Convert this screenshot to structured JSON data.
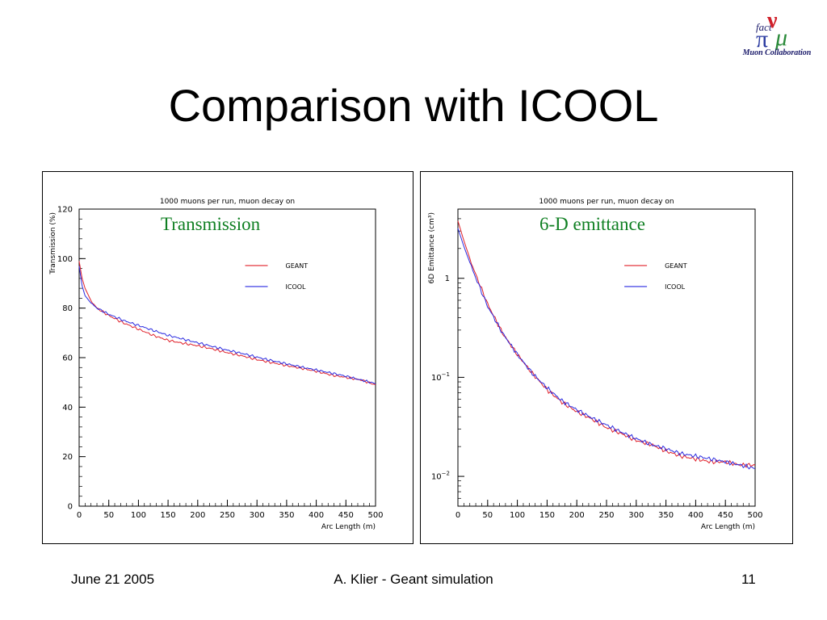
{
  "slide": {
    "title": "Comparison with ICOOL",
    "logo_caption": "Muon Collaboration",
    "logo_glyphs": {
      "nu": "ν",
      "fact": "fact",
      "pi": "π",
      "mu": "μ"
    },
    "footer": {
      "date": "June 21 2005",
      "center": "A. Klier - Geant simulation",
      "page": "11"
    }
  },
  "chart_data": [
    {
      "type": "line",
      "title": "1000 muons per run, muon decay on",
      "annotation": "Transmission",
      "xlabel": "Arc Length (m)",
      "ylabel": "Transmission (%)",
      "xlim": [
        0,
        500
      ],
      "ylim": [
        0,
        120
      ],
      "xticks": [
        "0",
        "50",
        "100",
        "150",
        "200",
        "250",
        "300",
        "350",
        "400",
        "450",
        "500"
      ],
      "yticks": [
        "0",
        "20",
        "40",
        "60",
        "80",
        "100",
        "120"
      ],
      "legend": [
        "GEANT",
        "ICOOL"
      ],
      "legend_position": "right",
      "colors": {
        "GEANT": "#e0202a",
        "ICOOL": "#2a2ae0"
      },
      "series": [
        {
          "name": "GEANT",
          "x": [
            0,
            5,
            10,
            20,
            30,
            50,
            75,
            100,
            125,
            150,
            175,
            200,
            225,
            250,
            275,
            300,
            325,
            350,
            375,
            400,
            425,
            450,
            475,
            500
          ],
          "values": [
            99,
            92,
            88,
            83,
            80,
            77,
            74,
            71.5,
            69,
            67,
            65.8,
            64.8,
            63.5,
            62,
            60.7,
            59.2,
            58,
            56.8,
            55.7,
            54.5,
            53,
            52,
            51,
            49
          ]
        },
        {
          "name": "ICOOL",
          "x": [
            0,
            5,
            10,
            20,
            30,
            50,
            75,
            100,
            125,
            150,
            175,
            200,
            225,
            250,
            275,
            300,
            325,
            350,
            375,
            400,
            425,
            450,
            475,
            500
          ],
          "values": [
            97,
            89,
            85,
            82,
            80,
            77.5,
            75,
            73,
            71,
            69,
            67.5,
            66,
            64.5,
            63,
            61.7,
            60.2,
            58.8,
            57.5,
            56.2,
            55,
            53.8,
            52.5,
            51,
            49.5
          ]
        }
      ]
    },
    {
      "type": "line",
      "title": "1000 muons per run, muon decay on",
      "annotation": "6-D emittance",
      "xlabel": "Arc Length (m)",
      "ylabel": "6D Emittance (cm³)",
      "xlim": [
        0,
        500
      ],
      "ylim": [
        0.005,
        5
      ],
      "yscale": "log",
      "xticks": [
        "0",
        "50",
        "100",
        "150",
        "200",
        "250",
        "300",
        "350",
        "400",
        "450",
        "500"
      ],
      "yticks": [
        {
          "value": 1,
          "mantissa": "1",
          "exponent": ""
        },
        {
          "value": 0.1,
          "mantissa": "10",
          "exponent": "−1"
        },
        {
          "value": 0.01,
          "mantissa": "10",
          "exponent": "−2"
        }
      ],
      "legend": [
        "GEANT",
        "ICOOL"
      ],
      "legend_position": "right",
      "colors": {
        "GEANT": "#e0202a",
        "ICOOL": "#2a2ae0"
      },
      "series": [
        {
          "name": "GEANT",
          "x": [
            0,
            10,
            25,
            50,
            75,
            100,
            125,
            150,
            175,
            200,
            225,
            250,
            275,
            300,
            325,
            350,
            375,
            400,
            425,
            450,
            475,
            500
          ],
          "values": [
            3.8,
            2.4,
            1.3,
            0.55,
            0.28,
            0.17,
            0.11,
            0.075,
            0.056,
            0.045,
            0.038,
            0.031,
            0.027,
            0.023,
            0.021,
            0.018,
            0.016,
            0.015,
            0.014,
            0.014,
            0.013,
            0.013
          ]
        },
        {
          "name": "ICOOL",
          "x": [
            0,
            10,
            25,
            50,
            75,
            100,
            125,
            150,
            175,
            200,
            225,
            250,
            275,
            300,
            325,
            350,
            375,
            400,
            425,
            450,
            475,
            500
          ],
          "values": [
            3.2,
            2.1,
            1.2,
            0.52,
            0.28,
            0.17,
            0.11,
            0.078,
            0.058,
            0.047,
            0.039,
            0.033,
            0.028,
            0.024,
            0.021,
            0.019,
            0.017,
            0.016,
            0.015,
            0.014,
            0.013,
            0.012
          ]
        }
      ]
    }
  ]
}
